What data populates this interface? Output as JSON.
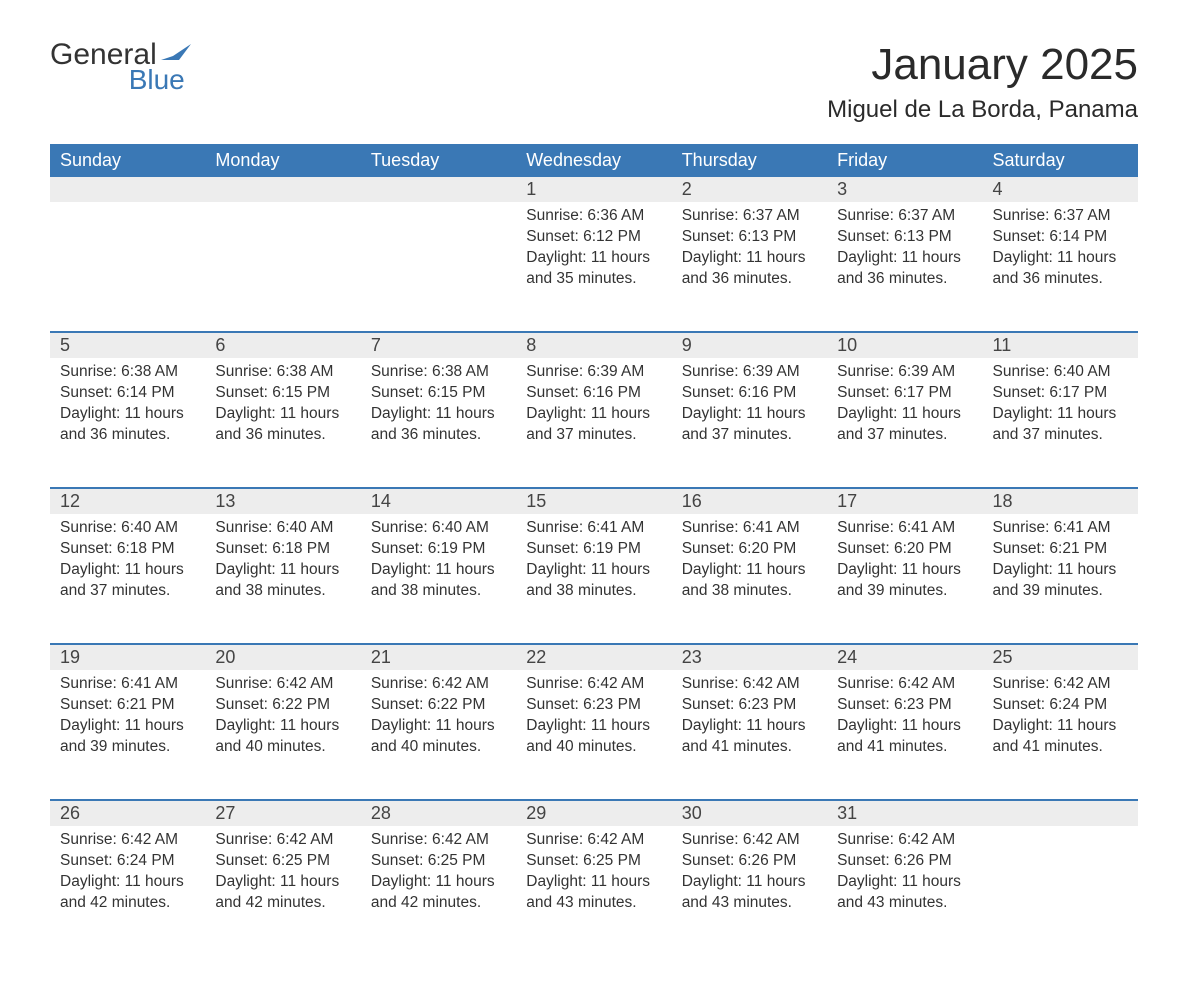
{
  "brand": {
    "line1": "General",
    "line2": "Blue"
  },
  "title": "January 2025",
  "location": "Miguel de La Borda, Panama",
  "colors": {
    "header_bg": "#3a78b5",
    "header_text": "#ffffff",
    "daynum_bg": "#ededed",
    "row_border": "#3a78b5",
    "body_text": "#333333",
    "brand_blue": "#3a78b5",
    "page_bg": "#ffffff"
  },
  "typography": {
    "title_fontsize": 44,
    "location_fontsize": 24,
    "weekday_fontsize": 18,
    "daynum_fontsize": 18,
    "cell_fontsize": 15.5
  },
  "weekdays": [
    "Sunday",
    "Monday",
    "Tuesday",
    "Wednesday",
    "Thursday",
    "Friday",
    "Saturday"
  ],
  "labels": {
    "sunrise": "Sunrise:",
    "sunset": "Sunset:",
    "daylight": "Daylight:"
  },
  "weeks": [
    [
      null,
      null,
      null,
      {
        "n": "1",
        "sr": "6:36 AM",
        "ss": "6:12 PM",
        "dl": "11 hours and 35 minutes."
      },
      {
        "n": "2",
        "sr": "6:37 AM",
        "ss": "6:13 PM",
        "dl": "11 hours and 36 minutes."
      },
      {
        "n": "3",
        "sr": "6:37 AM",
        "ss": "6:13 PM",
        "dl": "11 hours and 36 minutes."
      },
      {
        "n": "4",
        "sr": "6:37 AM",
        "ss": "6:14 PM",
        "dl": "11 hours and 36 minutes."
      }
    ],
    [
      {
        "n": "5",
        "sr": "6:38 AM",
        "ss": "6:14 PM",
        "dl": "11 hours and 36 minutes."
      },
      {
        "n": "6",
        "sr": "6:38 AM",
        "ss": "6:15 PM",
        "dl": "11 hours and 36 minutes."
      },
      {
        "n": "7",
        "sr": "6:38 AM",
        "ss": "6:15 PM",
        "dl": "11 hours and 36 minutes."
      },
      {
        "n": "8",
        "sr": "6:39 AM",
        "ss": "6:16 PM",
        "dl": "11 hours and 37 minutes."
      },
      {
        "n": "9",
        "sr": "6:39 AM",
        "ss": "6:16 PM",
        "dl": "11 hours and 37 minutes."
      },
      {
        "n": "10",
        "sr": "6:39 AM",
        "ss": "6:17 PM",
        "dl": "11 hours and 37 minutes."
      },
      {
        "n": "11",
        "sr": "6:40 AM",
        "ss": "6:17 PM",
        "dl": "11 hours and 37 minutes."
      }
    ],
    [
      {
        "n": "12",
        "sr": "6:40 AM",
        "ss": "6:18 PM",
        "dl": "11 hours and 37 minutes."
      },
      {
        "n": "13",
        "sr": "6:40 AM",
        "ss": "6:18 PM",
        "dl": "11 hours and 38 minutes."
      },
      {
        "n": "14",
        "sr": "6:40 AM",
        "ss": "6:19 PM",
        "dl": "11 hours and 38 minutes."
      },
      {
        "n": "15",
        "sr": "6:41 AM",
        "ss": "6:19 PM",
        "dl": "11 hours and 38 minutes."
      },
      {
        "n": "16",
        "sr": "6:41 AM",
        "ss": "6:20 PM",
        "dl": "11 hours and 38 minutes."
      },
      {
        "n": "17",
        "sr": "6:41 AM",
        "ss": "6:20 PM",
        "dl": "11 hours and 39 minutes."
      },
      {
        "n": "18",
        "sr": "6:41 AM",
        "ss": "6:21 PM",
        "dl": "11 hours and 39 minutes."
      }
    ],
    [
      {
        "n": "19",
        "sr": "6:41 AM",
        "ss": "6:21 PM",
        "dl": "11 hours and 39 minutes."
      },
      {
        "n": "20",
        "sr": "6:42 AM",
        "ss": "6:22 PM",
        "dl": "11 hours and 40 minutes."
      },
      {
        "n": "21",
        "sr": "6:42 AM",
        "ss": "6:22 PM",
        "dl": "11 hours and 40 minutes."
      },
      {
        "n": "22",
        "sr": "6:42 AM",
        "ss": "6:23 PM",
        "dl": "11 hours and 40 minutes."
      },
      {
        "n": "23",
        "sr": "6:42 AM",
        "ss": "6:23 PM",
        "dl": "11 hours and 41 minutes."
      },
      {
        "n": "24",
        "sr": "6:42 AM",
        "ss": "6:23 PM",
        "dl": "11 hours and 41 minutes."
      },
      {
        "n": "25",
        "sr": "6:42 AM",
        "ss": "6:24 PM",
        "dl": "11 hours and 41 minutes."
      }
    ],
    [
      {
        "n": "26",
        "sr": "6:42 AM",
        "ss": "6:24 PM",
        "dl": "11 hours and 42 minutes."
      },
      {
        "n": "27",
        "sr": "6:42 AM",
        "ss": "6:25 PM",
        "dl": "11 hours and 42 minutes."
      },
      {
        "n": "28",
        "sr": "6:42 AM",
        "ss": "6:25 PM",
        "dl": "11 hours and 42 minutes."
      },
      {
        "n": "29",
        "sr": "6:42 AM",
        "ss": "6:25 PM",
        "dl": "11 hours and 43 minutes."
      },
      {
        "n": "30",
        "sr": "6:42 AM",
        "ss": "6:26 PM",
        "dl": "11 hours and 43 minutes."
      },
      {
        "n": "31",
        "sr": "6:42 AM",
        "ss": "6:26 PM",
        "dl": "11 hours and 43 minutes."
      },
      null
    ]
  ]
}
